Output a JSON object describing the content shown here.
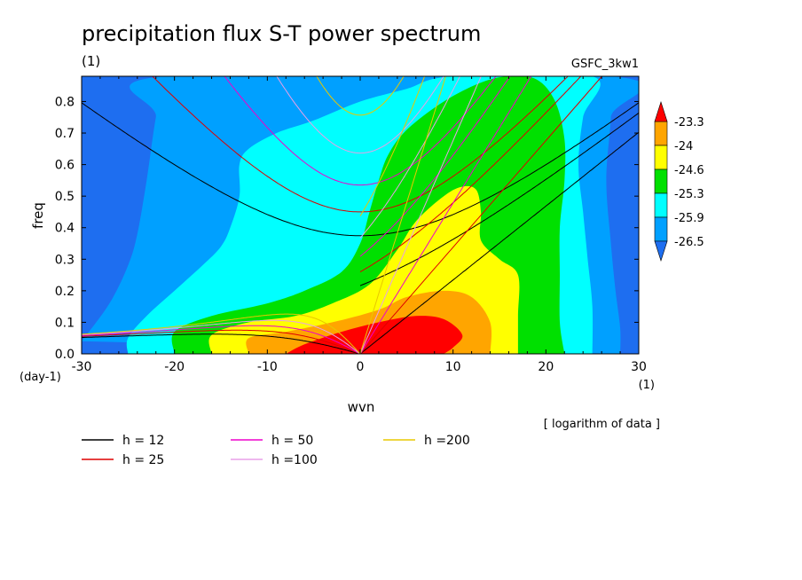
{
  "title": "precipitation flux S-T power spectrum",
  "subtitle_left": "(1)",
  "subtitle_right": "GSFC_3kw1",
  "note": "[ logarithm of data ]",
  "chart_data": {
    "type": "heatmap",
    "xlabel": "wvn",
    "ylabel": "freq",
    "x_unit": "(1)",
    "y_unit": "(day-1)",
    "xlim": [
      -30,
      30
    ],
    "ylim": [
      0,
      0.88
    ],
    "x_ticks": [
      -30,
      -20,
      -10,
      0,
      10,
      20,
      30
    ],
    "x_tick_labels": [
      "-30",
      "-20",
      "-10",
      "0",
      "10",
      "20",
      "30"
    ],
    "y_ticks": [
      0,
      0.1,
      0.2,
      0.3,
      0.4,
      0.5,
      0.6,
      0.7,
      0.8
    ],
    "y_tick_labels": [
      "0.0",
      "0.1",
      "0.2",
      "0.3",
      "0.4",
      "0.5",
      "0.6",
      "0.7",
      "0.8"
    ],
    "colorbar": {
      "levels": [
        -26.5,
        -25.9,
        -25.3,
        -24.6,
        -24,
        -23.3
      ],
      "labels": [
        "-26.5",
        "-25.9",
        "-25.3",
        "-24.6",
        "-24",
        "-23.3"
      ],
      "colors": [
        "#1e6ef0",
        "#00a0ff",
        "#00ffff",
        "#00e000",
        "#ffff00",
        "#ffa500",
        "#ff0000"
      ]
    },
    "field": [
      {
        "level": -26.5,
        "label": "> -26.5",
        "color": "#00a0ff",
        "outline": [
          [
            -30,
            0.04
          ],
          [
            -27,
            0.16
          ],
          [
            -25,
            0.28
          ],
          [
            -24,
            0.38
          ],
          [
            -23,
            0.55
          ],
          [
            -22,
            0.75
          ],
          [
            -21,
            0.88
          ],
          [
            27,
            0.88
          ],
          [
            27,
            0.75
          ],
          [
            26.5,
            0.55
          ],
          [
            27,
            0.35
          ],
          [
            27.5,
            0.2
          ],
          [
            28,
            0.08
          ],
          [
            28,
            0
          ]
        ]
      },
      {
        "level": -25.9,
        "label": "> -25.9",
        "color": "#00ffff",
        "outline": [
          [
            -25,
            0
          ],
          [
            -25,
            0.05
          ],
          [
            -23,
            0.12
          ],
          [
            -20,
            0.2
          ],
          [
            -17,
            0.28
          ],
          [
            -15,
            0.34
          ],
          [
            -14,
            0.4
          ],
          [
            -13,
            0.5
          ],
          [
            -13,
            0.6
          ],
          [
            -12,
            0.65
          ],
          [
            -9,
            0.7
          ],
          [
            -5,
            0.74
          ],
          [
            0,
            0.8
          ],
          [
            5,
            0.84
          ],
          [
            10,
            0.88
          ],
          [
            25,
            0.88
          ],
          [
            24,
            0.75
          ],
          [
            23.5,
            0.6
          ],
          [
            24,
            0.45
          ],
          [
            24.5,
            0.3
          ],
          [
            25,
            0.15
          ],
          [
            25,
            0
          ]
        ]
      },
      {
        "level": -25.3,
        "label": "> -25.3",
        "color": "#00e000",
        "outline": [
          [
            -20,
            0
          ],
          [
            -20,
            0.07
          ],
          [
            -16,
            0.12
          ],
          [
            -10,
            0.16
          ],
          [
            -6,
            0.2
          ],
          [
            -2,
            0.26
          ],
          [
            0,
            0.35
          ],
          [
            1,
            0.45
          ],
          [
            2,
            0.55
          ],
          [
            3,
            0.63
          ],
          [
            5,
            0.71
          ],
          [
            9,
            0.8
          ],
          [
            13,
            0.86
          ],
          [
            16,
            0.88
          ],
          [
            19,
            0.87
          ],
          [
            21,
            0.8
          ],
          [
            22,
            0.68
          ],
          [
            22,
            0.55
          ],
          [
            21.5,
            0.4
          ],
          [
            21.5,
            0.25
          ],
          [
            21.5,
            0.1
          ],
          [
            22,
            0
          ]
        ]
      },
      {
        "level": -24.6,
        "label": "> -24.6",
        "color": "#ffff00",
        "outline": [
          [
            -16,
            0
          ],
          [
            -16,
            0.06
          ],
          [
            -12,
            0.1
          ],
          [
            -7,
            0.12
          ],
          [
            -3,
            0.16
          ],
          [
            1,
            0.22
          ],
          [
            4,
            0.33
          ],
          [
            6,
            0.42
          ],
          [
            9,
            0.5
          ],
          [
            11,
            0.53
          ],
          [
            12.5,
            0.52
          ],
          [
            13,
            0.45
          ],
          [
            13,
            0.36
          ],
          [
            15,
            0.3
          ],
          [
            17,
            0.25
          ],
          [
            17,
            0.12
          ],
          [
            17,
            0
          ]
        ]
      },
      {
        "level": -24,
        "label": "> -24",
        "color": "#ffa500",
        "outline": [
          [
            -12,
            0
          ],
          [
            -12,
            0.05
          ],
          [
            -8,
            0.07
          ],
          [
            -3,
            0.1
          ],
          [
            2,
            0.14
          ],
          [
            5,
            0.18
          ],
          [
            9,
            0.2
          ],
          [
            12,
            0.18
          ],
          [
            14,
            0.1
          ],
          [
            14,
            0
          ]
        ]
      },
      {
        "level": -23.3,
        "label": "> -23.3",
        "color": "#ff0000",
        "outline": [
          [
            -8,
            0
          ],
          [
            -6,
            0.03
          ],
          [
            -2,
            0.07
          ],
          [
            2,
            0.1
          ],
          [
            6,
            0.12
          ],
          [
            9,
            0.11
          ],
          [
            11,
            0.06
          ],
          [
            10,
            0.02
          ],
          [
            9,
            0
          ]
        ]
      }
    ],
    "series": [
      {
        "name": "h = 12",
        "color": "#000000",
        "h": 12
      },
      {
        "name": "h = 25",
        "color": "#dd0000",
        "h": 25
      },
      {
        "name": "h = 50",
        "color": "#ee00cc",
        "h": 50
      },
      {
        "name": "h =100",
        "color": "#e8a0e8",
        "h": 100
      },
      {
        "name": "h =200",
        "color": "#e8c800",
        "h": 200
      }
    ]
  }
}
